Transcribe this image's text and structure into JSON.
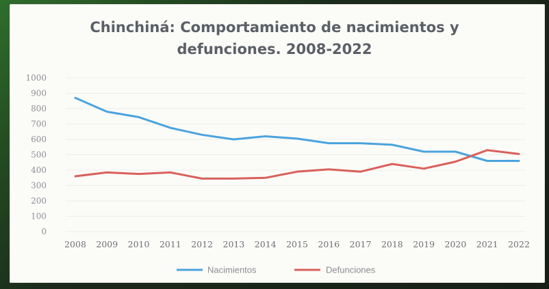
{
  "chart_data": {
    "type": "line",
    "title": "Chinchiná: Comportamiento de nacimientos y defunciones.  2008-2022",
    "title_lines": [
      "Chinchiná: Comportamiento de nacimientos y",
      "defunciones.  2008-2022"
    ],
    "categories": [
      "2008",
      "2009",
      "2010",
      "2011",
      "2012",
      "2013",
      "2014",
      "2015",
      "2016",
      "2017",
      "2018",
      "2019",
      "2020",
      "2021",
      "2022"
    ],
    "y_ticks": [
      "0",
      "100",
      "200",
      "300",
      "400",
      "500",
      "600",
      "700",
      "800",
      "900",
      "1000"
    ],
    "ylim": [
      0,
      1000
    ],
    "grid": true,
    "legend_position": "bottom",
    "series": [
      {
        "name": "Nacimientos",
        "color": "#4aa3df",
        "values": [
          870,
          780,
          745,
          675,
          630,
          600,
          620,
          605,
          575,
          575,
          565,
          520,
          520,
          460,
          460
        ]
      },
      {
        "name": "Defunciones",
        "color": "#d9605a",
        "values": [
          360,
          385,
          375,
          385,
          345,
          345,
          350,
          390,
          405,
          390,
          440,
          410,
          455,
          530,
          505
        ]
      }
    ]
  }
}
